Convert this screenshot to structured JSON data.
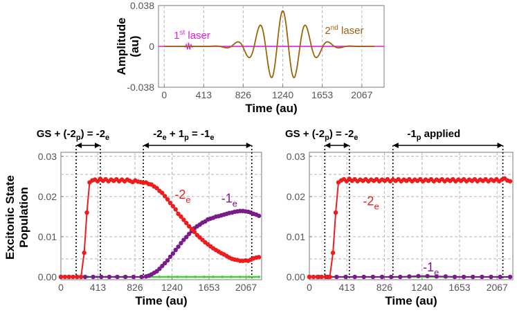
{
  "chart_data": [
    {
      "id": "laser-panel",
      "type": "line",
      "xlabel": "Time (au)",
      "ylabel": "Amplitude (au)",
      "xlim": [
        -60,
        2300
      ],
      "ylim": [
        -0.038,
        0.038
      ],
      "xticks": [
        "0",
        "413",
        "826",
        "1240",
        "1653",
        "2067"
      ],
      "xtick_values": [
        0,
        413,
        826,
        1240,
        1653,
        2067
      ],
      "yticks": [
        "0.038",
        "0",
        "-0.038"
      ],
      "ytick_values": [
        0.038,
        0,
        -0.038
      ],
      "grid": true,
      "series": [
        {
          "name": "1st laser",
          "label_main": "1",
          "label_sup": "st",
          "label_rest": " laser",
          "color": "#e01ce0",
          "pulse": {
            "center": 255,
            "width": 30,
            "amplitude": 0.0035,
            "frequency": 0.25
          }
        },
        {
          "name": "2nd laser",
          "label_main": "2",
          "label_sup": "nd",
          "label_rest": " laser",
          "color": "#a0600a",
          "pulse": {
            "center": 1240,
            "width": 330,
            "amplitude": 0.033,
            "frequency": 0.0262
          }
        }
      ]
    },
    {
      "id": "left-population",
      "type": "line",
      "xlabel": "Time (au)",
      "ylabel_line1": "Excitonic State",
      "ylabel_line2": "Population",
      "xlim": [
        0,
        2240
      ],
      "ylim": [
        -0.0007,
        0.031
      ],
      "xticks": [
        "0",
        "413",
        "826",
        "1240",
        "1653",
        "2067"
      ],
      "xtick_values": [
        0,
        413,
        826,
        1240,
        1653,
        2067
      ],
      "yticks": [
        "0.03",
        "0.02",
        "0.01",
        "0.00"
      ],
      "ytick_values": [
        0.03,
        0.02,
        0.01,
        0.0
      ],
      "extra_dashed_y": [
        0.0045,
        0.0255
      ],
      "vlines": [
        170,
        440,
        920,
        2130
      ],
      "annotations": [
        {
          "kind": "arrow",
          "x1": 170,
          "x2": 440,
          "parts": [
            [
              "GS + (-2",
              ""
            ],
            [
              "p",
              "sub"
            ],
            [
              ") = -2",
              ""
            ],
            [
              "e",
              "sub"
            ]
          ],
          "text_x": 135
        },
        {
          "kind": "arrow",
          "x1": 920,
          "x2": 2130,
          "parts": [
            [
              "-2",
              ""
            ],
            [
              "e",
              "sub"
            ],
            [
              " + 1",
              ""
            ],
            [
              "p",
              "sub"
            ],
            [
              " = -1",
              ""
            ],
            [
              "e",
              "sub"
            ]
          ],
          "text_x": 1370
        }
      ],
      "labels": [
        {
          "main": "-2",
          "sub": "e",
          "x": 1270,
          "y": 0.0195,
          "color": "#ee1c1c"
        },
        {
          "main": "-1",
          "sub": "e",
          "x": 1790,
          "y": 0.0185,
          "color": "#7b1a8a"
        }
      ],
      "series": [
        {
          "name": "-2e",
          "color": "#ee1c1c",
          "x": [
            0,
            45,
            90,
            135,
            180,
            225,
            260,
            290,
            320,
            350,
            380,
            410,
            440,
            470,
            500,
            530,
            560,
            590,
            620,
            650,
            680,
            710,
            740,
            770,
            800,
            830,
            860,
            890,
            920,
            950,
            980,
            1010,
            1040,
            1070,
            1100,
            1130,
            1160,
            1190,
            1220,
            1250,
            1280,
            1310,
            1340,
            1370,
            1400,
            1430,
            1460,
            1490,
            1520,
            1550,
            1580,
            1610,
            1640,
            1670,
            1700,
            1730,
            1760,
            1790,
            1820,
            1850,
            1880,
            1910,
            1940,
            1970,
            2000,
            2030,
            2060,
            2090,
            2120,
            2150,
            2180,
            2210
          ],
          "y": [
            0,
            0,
            0,
            0,
            0,
            0,
            0.006,
            0.016,
            0.0235,
            0.024,
            0.0242,
            0.0238,
            0.0244,
            0.0239,
            0.0243,
            0.0238,
            0.0242,
            0.0239,
            0.0243,
            0.0238,
            0.0242,
            0.0238,
            0.0242,
            0.0239,
            0.0236,
            0.024,
            0.0237,
            0.0236,
            0.0234,
            0.0235,
            0.0231,
            0.023,
            0.0225,
            0.0221,
            0.0214,
            0.0209,
            0.0201,
            0.0193,
            0.0184,
            0.0176,
            0.0168,
            0.0157,
            0.015,
            0.0142,
            0.0134,
            0.0126,
            0.0119,
            0.0112,
            0.0104,
            0.0098,
            0.0092,
            0.0086,
            0.0081,
            0.0076,
            0.0071,
            0.0067,
            0.0063,
            0.0059,
            0.0056,
            0.0052,
            0.0048,
            0.0045,
            0.0043,
            0.0042,
            0.004,
            0.004,
            0.0041,
            0.004,
            0.0043,
            0.0046,
            0.0048,
            0.0049
          ]
        },
        {
          "name": "-1e",
          "color": "#7b1a8a",
          "x": [
            0,
            90,
            180,
            270,
            360,
            450,
            540,
            630,
            720,
            810,
            900,
            950,
            980,
            1010,
            1040,
            1070,
            1100,
            1130,
            1160,
            1190,
            1220,
            1250,
            1280,
            1310,
            1340,
            1370,
            1400,
            1430,
            1460,
            1490,
            1520,
            1550,
            1580,
            1610,
            1640,
            1670,
            1700,
            1730,
            1760,
            1790,
            1820,
            1850,
            1880,
            1910,
            1940,
            1970,
            2000,
            2030,
            2060,
            2090,
            2120,
            2150,
            2180,
            2210
          ],
          "y": [
            0,
            0,
            0,
            0,
            0,
            0,
            0,
            0,
            0,
            0,
            0,
            0.0001,
            0.0003,
            0.0006,
            0.001,
            0.0014,
            0.002,
            0.0027,
            0.0034,
            0.0041,
            0.005,
            0.0058,
            0.0067,
            0.0075,
            0.0084,
            0.0092,
            0.0099,
            0.0107,
            0.0114,
            0.0121,
            0.0126,
            0.013,
            0.0135,
            0.0138,
            0.0143,
            0.0145,
            0.0147,
            0.015,
            0.0151,
            0.0153,
            0.0155,
            0.0157,
            0.0159,
            0.016,
            0.0162,
            0.0163,
            0.0164,
            0.0164,
            0.0163,
            0.0162,
            0.016,
            0.0157,
            0.0155,
            0.0152
          ]
        },
        {
          "name": "other",
          "color": "#39d039",
          "x": [
            0,
            100,
            200,
            300,
            400,
            500,
            600,
            700,
            800,
            900,
            1000,
            1100,
            1200,
            1300,
            1400,
            1500,
            1600,
            1700,
            1800,
            1900,
            2000,
            2100,
            2210
          ],
          "y": [
            0,
            0,
            0,
            0,
            0,
            0,
            0,
            0,
            0,
            0,
            0,
            0,
            0,
            0,
            0,
            0,
            0,
            0,
            0,
            0,
            0,
            0,
            0
          ]
        }
      ]
    },
    {
      "id": "right-population",
      "type": "line",
      "xlabel": "Time (au)",
      "xlim": [
        0,
        2240
      ],
      "ylim": [
        -0.0007,
        0.031
      ],
      "xticks": [
        "0",
        "413",
        "826",
        "1240",
        "1653",
        "2067"
      ],
      "xtick_values": [
        0,
        413,
        826,
        1240,
        1653,
        2067
      ],
      "yticks": [
        "0.03",
        "0.02",
        "0.01",
        "0.00"
      ],
      "ytick_values": [
        0.03,
        0.02,
        0.01,
        0.0
      ],
      "extra_dashed_y": [
        0.0045,
        0.0255
      ],
      "vlines": [
        170,
        440,
        920,
        2130
      ],
      "annotations": [
        {
          "kind": "arrow",
          "x1": 170,
          "x2": 440,
          "parts": [
            [
              "GS + (-2",
              ""
            ],
            [
              "p",
              "sub"
            ],
            [
              ") = -2",
              ""
            ],
            [
              "e",
              "sub"
            ]
          ],
          "text_x": 135
        },
        {
          "kind": "arrow",
          "x1": 920,
          "x2": 2130,
          "parts": [
            [
              "-1",
              ""
            ],
            [
              "p",
              "sub"
            ],
            [
              " applied",
              ""
            ]
          ],
          "text_x": 1370
        }
      ],
      "labels": [
        {
          "main": "-2",
          "sub": "e",
          "x": 590,
          "y": 0.0178,
          "color": "#ee1c1c"
        },
        {
          "main": "-1",
          "sub": "e",
          "x": 1250,
          "y": 0.0014,
          "color": "#7b1a8a"
        }
      ],
      "series": [
        {
          "name": "-2e",
          "color": "#ee1c1c",
          "x": [
            0,
            45,
            90,
            135,
            180,
            225,
            260,
            290,
            320,
            350,
            380,
            410,
            440,
            470,
            500,
            530,
            560,
            590,
            620,
            650,
            680,
            710,
            740,
            770,
            800,
            830,
            860,
            890,
            920,
            950,
            980,
            1010,
            1040,
            1070,
            1100,
            1130,
            1160,
            1190,
            1220,
            1250,
            1280,
            1310,
            1340,
            1370,
            1400,
            1430,
            1460,
            1490,
            1520,
            1550,
            1580,
            1610,
            1640,
            1670,
            1700,
            1730,
            1760,
            1790,
            1820,
            1850,
            1880,
            1910,
            1940,
            1970,
            2000,
            2030,
            2060,
            2090,
            2120,
            2150,
            2180,
            2210
          ],
          "y": [
            0,
            0,
            0,
            0,
            0,
            0,
            0.006,
            0.016,
            0.0235,
            0.024,
            0.0243,
            0.0238,
            0.0244,
            0.0239,
            0.0243,
            0.0238,
            0.0242,
            0.0239,
            0.0243,
            0.0238,
            0.0242,
            0.0239,
            0.0243,
            0.0238,
            0.0242,
            0.0239,
            0.0243,
            0.0238,
            0.0242,
            0.0239,
            0.0243,
            0.0238,
            0.0242,
            0.0239,
            0.0243,
            0.0238,
            0.0242,
            0.0239,
            0.0243,
            0.0238,
            0.0242,
            0.0239,
            0.0243,
            0.0238,
            0.0242,
            0.0239,
            0.0243,
            0.0238,
            0.0242,
            0.0239,
            0.0243,
            0.0238,
            0.0242,
            0.0239,
            0.0243,
            0.0238,
            0.0242,
            0.0239,
            0.0243,
            0.0238,
            0.0242,
            0.0239,
            0.0243,
            0.0238,
            0.0242,
            0.0239,
            0.0243,
            0.0238,
            0.0242,
            0.0245,
            0.024,
            0.0238
          ]
        },
        {
          "name": "-1e",
          "color": "#7b1a8a",
          "x": [
            0,
            100,
            200,
            300,
            400,
            500,
            600,
            700,
            800,
            900,
            1000,
            1100,
            1200,
            1300,
            1400,
            1500,
            1600,
            1700,
            1800,
            1900,
            2000,
            2100,
            2210
          ],
          "y": [
            0,
            0,
            0,
            0,
            0,
            0,
            0,
            0,
            0,
            0,
            0,
            0.0001,
            0.0002,
            0.0002,
            0.0001,
            0.0001,
            0,
            0,
            0,
            0,
            0,
            0,
            0
          ]
        },
        {
          "name": "other",
          "color": "#39d039",
          "x": [
            0,
            100,
            200,
            300,
            400,
            500,
            600,
            700,
            800,
            900,
            1000,
            1100,
            1200,
            1300,
            1400,
            1500,
            1600,
            1700,
            1800,
            1900,
            2000,
            2100,
            2210
          ],
          "y": [
            0,
            0,
            0,
            0,
            0,
            0,
            0,
            0,
            0,
            0,
            0,
            0,
            0,
            0,
            0,
            0,
            0,
            0,
            0,
            0,
            0,
            0,
            0
          ]
        }
      ]
    }
  ]
}
